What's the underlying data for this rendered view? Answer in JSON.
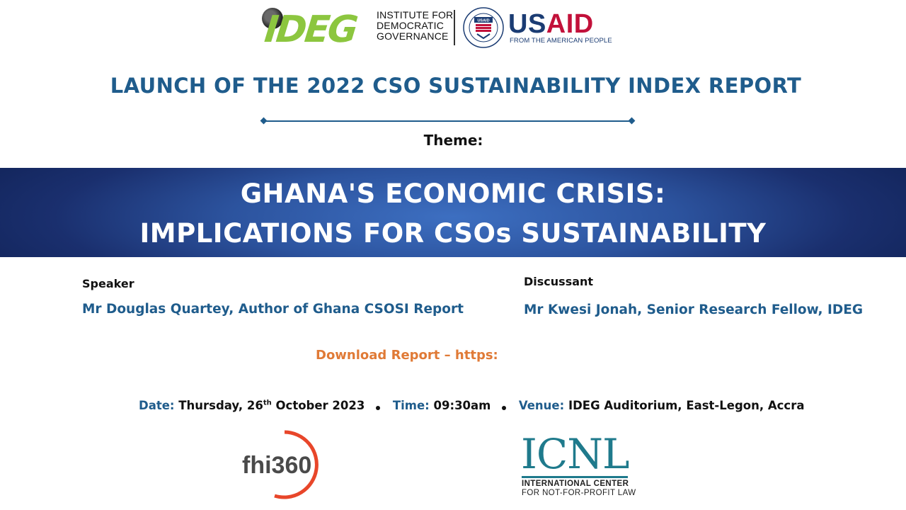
{
  "header": {
    "ideg_logo_text": "IDEG",
    "ideg_name_lines": [
      "INSTITUTE FOR",
      "DEMOCRATIC",
      "GOVERNANCE"
    ],
    "usaid_us": "US",
    "usaid_aid": "AID",
    "usaid_tagline": "FROM THE AMERICAN PEOPLE"
  },
  "title": "LAUNCH OF THE 2022 CSO SUSTAINABILITY INDEX REPORT",
  "theme_label": "Theme:",
  "banner": {
    "line1": "GHANA'S ECONOMIC CRISIS:",
    "line2": "IMPLICATIONS FOR CSOs SUSTAINABILITY",
    "colors": {
      "center": "#3d6fc1",
      "edge": "#14275f"
    }
  },
  "speaker": {
    "label": "Speaker",
    "name": "Mr Douglas Quartey, Author of Ghana CSOSI Report"
  },
  "discussant": {
    "label": "Discussant",
    "name": "Mr Kwesi Jonah, Senior Research Fellow, IDEG"
  },
  "download": "Download Report – https:",
  "event": {
    "date_label": "Date:",
    "date_value_pre": "Thursday, 26",
    "date_value_sup": "th",
    "date_value_post": " October 2023",
    "time_label": "Time:",
    "time_value": "09:30am",
    "venue_label": "Venue:",
    "venue_value": "IDEG Auditorium, East-Legon, Accra"
  },
  "footer": {
    "fhi_text": "fhi360",
    "icnl_word": "ICNL",
    "icnl_line1": "INTERNATIONAL CENTER",
    "icnl_line2": "FOR NOT-FOR-PROFIT LAW"
  },
  "colors": {
    "title_blue": "#1f5c8c",
    "download_orange": "#e07a36",
    "ideg_green": "#8cc63f",
    "usaid_navy": "#1b3c73",
    "usaid_red": "#c2113a",
    "icnl_teal": "#1f7a8c",
    "fhi_orange": "#e8462a"
  }
}
